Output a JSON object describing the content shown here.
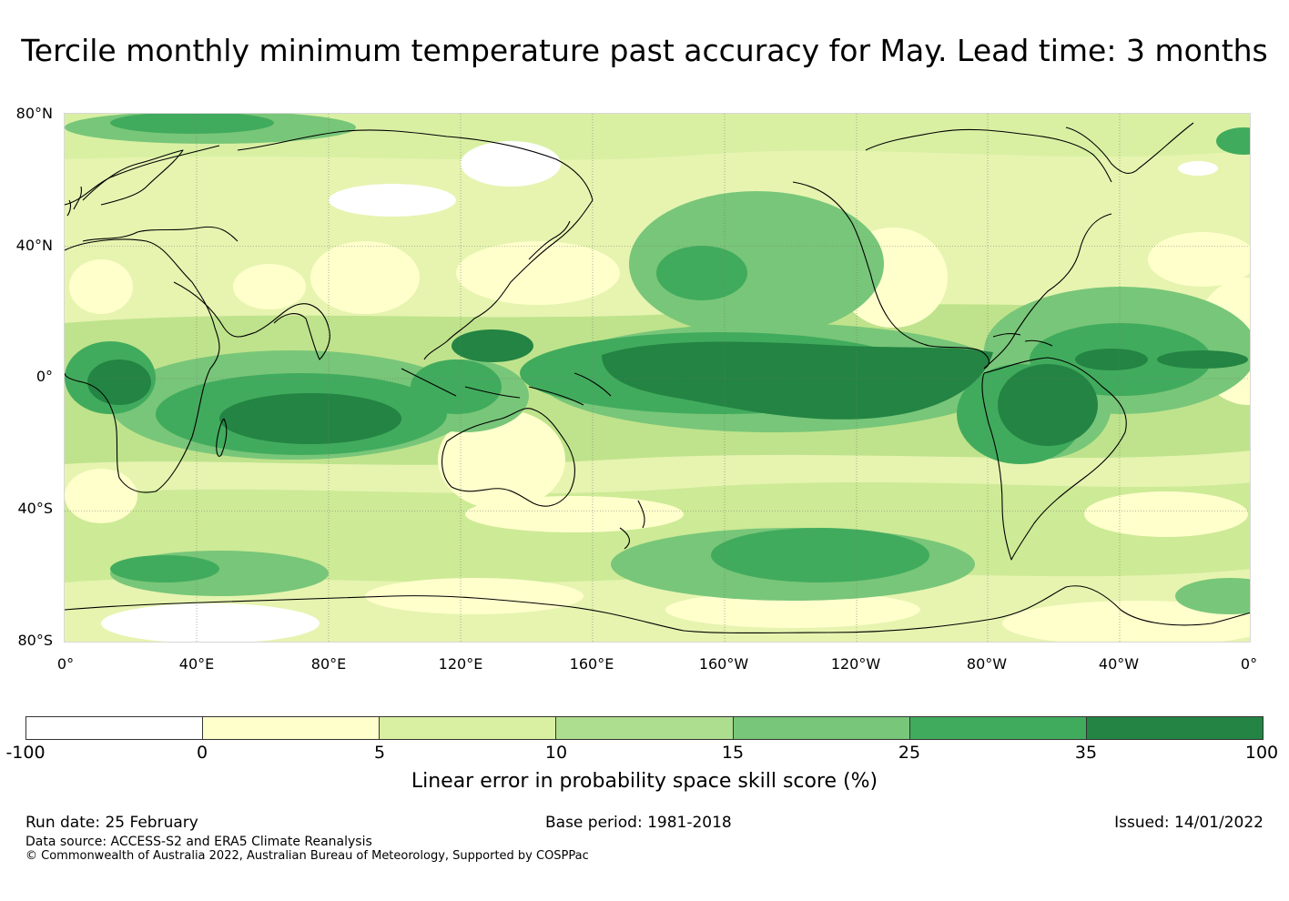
{
  "title": "Tercile monthly minimum temperature past accuracy for May. Lead time: 3 months",
  "map": {
    "latitude_labels": [
      "80°N",
      "40°N",
      "0°",
      "40°S",
      "80°S"
    ],
    "longitude_labels": [
      "0°",
      "40°E",
      "80°E",
      "120°E",
      "160°E",
      "160°W",
      "120°W",
      "80°W",
      "40°W",
      "0°"
    ],
    "background_color": "#f9fcc8"
  },
  "legend": {
    "ticks": [
      "-100",
      "0",
      "5",
      "10",
      "15",
      "25",
      "35",
      "100"
    ],
    "colors": [
      "#ffffff",
      "#ffffcc",
      "#d9f0a3",
      "#addd8e",
      "#78c679",
      "#41ab5d",
      "#238443"
    ],
    "label": "Linear error in probability space skill score (%)"
  },
  "footer": {
    "run_date": "Run date: 25 February",
    "base_period": "Base period: 1981-2018",
    "issued": "Issued: 14/01/2022",
    "data_source": "Data source: ACCESS-S2 and ERA5 Climate Reanalysis",
    "copyright": "© Commonwealth of Australia 2022, Australian Bureau of Meteorology, Supported by COSPPac"
  }
}
